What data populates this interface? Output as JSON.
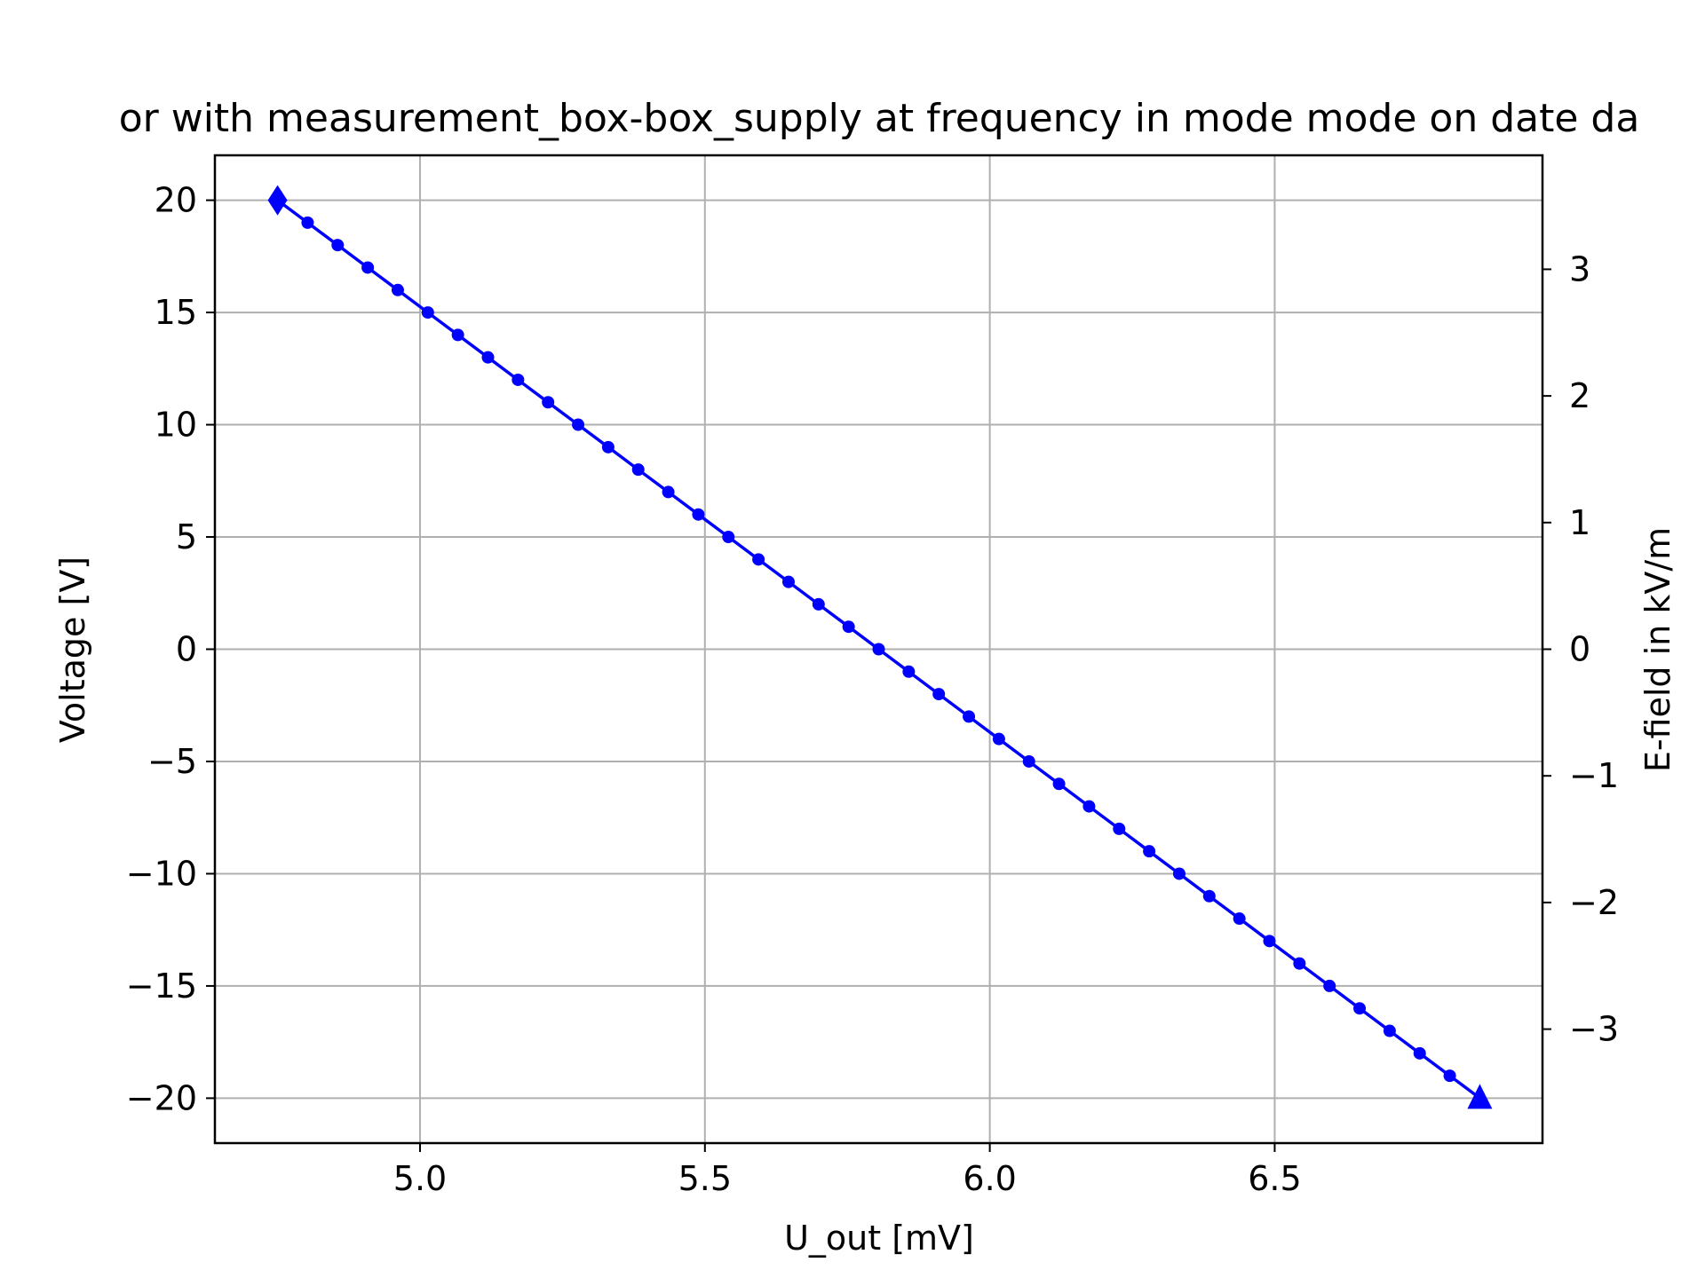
{
  "chart_data": {
    "type": "line",
    "title": "or with measurement_box-box_supply at frequency in mode mode on date da",
    "xlabel": "U_out [mV]",
    "ylabel": "Voltage [V]",
    "y2label": "E-field in kV/m",
    "xlim": [
      4.64,
      6.97
    ],
    "ylim": [
      -22,
      22
    ],
    "y2lim": [
      -3.9,
      3.9
    ],
    "x_ticks": [
      5.0,
      5.5,
      6.0,
      6.5
    ],
    "x_tick_labels": [
      "5.0",
      "5.5",
      "6.0",
      "6.5"
    ],
    "y_ticks": [
      -20,
      -15,
      -10,
      -5,
      0,
      5,
      10,
      15,
      20
    ],
    "y_tick_labels": [
      "−20",
      "−15",
      "−10",
      "−5",
      "0",
      "5",
      "10",
      "15",
      "20"
    ],
    "y2_ticks": [
      -3,
      -2,
      -1,
      0,
      1,
      2,
      3
    ],
    "y2_tick_labels": [
      "−3",
      "−2",
      "−1",
      "0",
      "1",
      "2",
      "3"
    ],
    "grid": true,
    "series": [
      {
        "color": "#0000ff",
        "x_start": 4.75,
        "x_end": 6.86,
        "y_start": 20,
        "y_end": -20,
        "y_step": -1,
        "start_marker": "diamond",
        "end_marker": "triangle",
        "point_marker": "circle"
      }
    ]
  }
}
